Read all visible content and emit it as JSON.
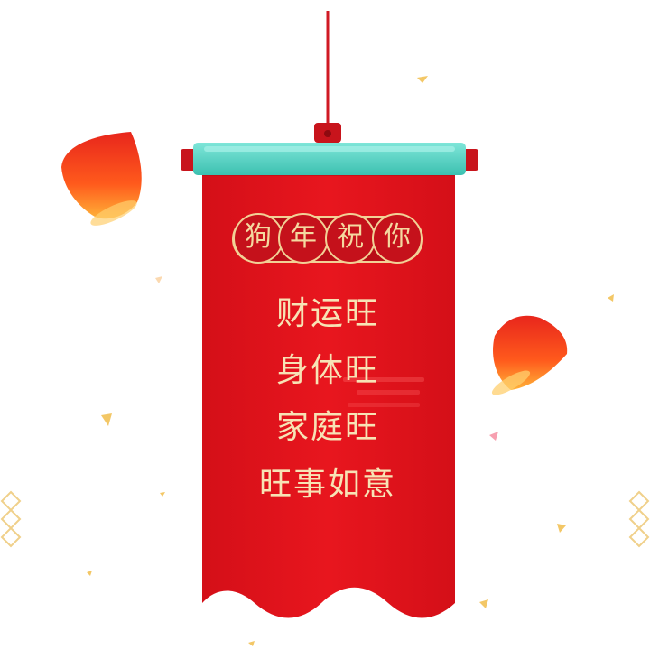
{
  "banner": {
    "header_chars": [
      "狗",
      "年",
      "祝",
      "你"
    ],
    "lines": [
      "财运旺",
      "身体旺",
      "家庭旺",
      "旺事如意"
    ]
  },
  "colors": {
    "banner_red": "#e4141c",
    "banner_dark_red": "#c40d15",
    "rod_teal": "#4fd1c2",
    "gold": "#f4d9a0",
    "lantern_orange": "#ff7a1a"
  },
  "icons": [
    "sky-lantern-icon",
    "diamond-ornament-icon",
    "confetti-icon"
  ]
}
